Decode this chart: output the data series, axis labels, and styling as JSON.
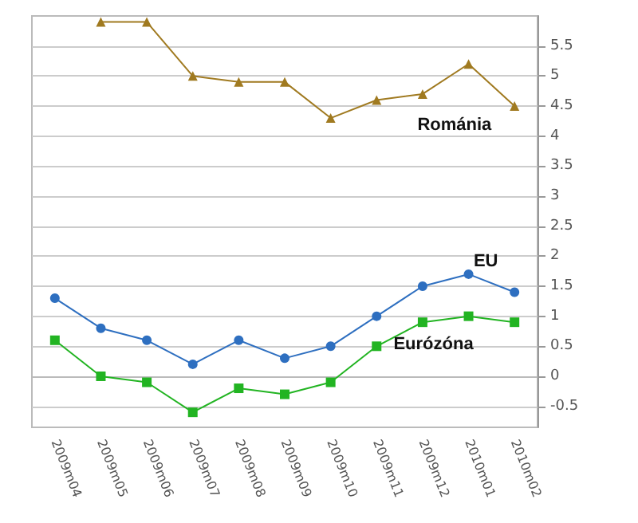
{
  "chart_data": {
    "type": "line",
    "categories": [
      "2009m04",
      "2009m05",
      "2009m06",
      "2009m07",
      "2009m08",
      "2009m09",
      "2009m10",
      "2009m11",
      "2009m12",
      "2010m01",
      "2010m02"
    ],
    "series": [
      {
        "name": "Románia",
        "color": "#a07a20",
        "marker": "triangle",
        "values": [
          null,
          5.9,
          5.9,
          5.0,
          4.9,
          4.9,
          4.3,
          4.6,
          4.7,
          5.2,
          4.5
        ]
      },
      {
        "name": "EU",
        "color": "#2e6fc0",
        "marker": "circle",
        "values": [
          1.3,
          0.8,
          0.6,
          0.2,
          0.6,
          0.3,
          0.5,
          1.0,
          1.5,
          1.7,
          1.4
        ]
      },
      {
        "name": "Eurózóna",
        "color": "#22b422",
        "marker": "square",
        "values": [
          0.6,
          0.0,
          -0.1,
          -0.6,
          -0.2,
          -0.3,
          -0.1,
          0.5,
          0.9,
          1.0,
          0.9
        ]
      }
    ],
    "ylim": [
      -0.85,
      6
    ],
    "yticks": [
      -0.5,
      0,
      0.5,
      1,
      1.5,
      2,
      2.5,
      3,
      3.5,
      4,
      4.5,
      5,
      5.5
    ],
    "grid": "y",
    "legend": false
  }
}
